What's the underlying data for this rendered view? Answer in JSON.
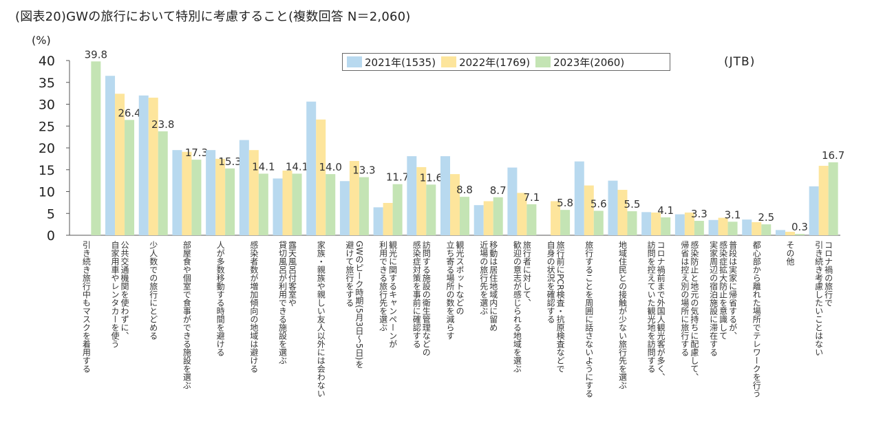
{
  "chart_data": {
    "type": "bar",
    "title": "(図表20)GWの旅行において特別に考慮すること(複数回答 N＝2,060)",
    "ylabel": "(%)",
    "source": "(JTB)",
    "ylim": [
      0,
      40
    ],
    "yticks": [
      0,
      5,
      10,
      15,
      20,
      25,
      30,
      35,
      40
    ],
    "grid": false,
    "legend_position": "top-center",
    "categories": [
      "引き続き旅行中もマスクを着用する",
      "公共交通機関を使わずに、自家用車やレンタカーを使う",
      "少人数での旅行にとどめる",
      "部屋食や個室で食事ができる施設を選ぶ",
      "人が多数移動する時間を避ける",
      "感染者数が増加傾向の地域は避ける",
      "露天風呂付客室や貸切風呂が利用できる施設を選ぶ",
      "家族・親族や親しい友人以外には会わない",
      "GWのピーク時期(5月3日～5日)を避けて旅行をする",
      "観光に関するキャンペーンが利用できる旅行先を選ぶ",
      "訪問する施設の衛生管理などの感染症対策を事前に確認する",
      "観光スポットなどの立ち寄る場所の数を減らす",
      "移動は居住地域内に留め近場の旅行先を選ぶ",
      "旅行者に対して、歓迎の意志が感じられる地域を選ぶ",
      "旅行前にPCR検査・抗原検査などで自身の状況を確認する",
      "旅行することを周囲に話さないようにする",
      "地域住民との接触が少ない旅行先を選ぶ",
      "コロナ禍前まで外国人観光客が多く、訪問を控えていた観光地を訪問する",
      "感染防止と地元の気持ちに配慮して、帰省は控え別の場所に旅行する",
      "普段は実家に帰省するが、感染症拡大防止を意識して実家周辺の宿泊施設に滞在する",
      "都心部から離れた場所でテレワークを行う",
      "その他",
      "コロナ禍の旅行で引き続き考慮したいことはない"
    ],
    "category_lines": [
      [
        "引き続き旅行中もマスクを着用する"
      ],
      [
        "公共交通機関を使わずに、",
        "自家用車やレンタカーを使う"
      ],
      [
        "少人数での旅行にとどめる"
      ],
      [
        "部屋食や個室で食事ができる施設を選ぶ"
      ],
      [
        "人が多数移動する時間を避ける"
      ],
      [
        "感染者数が増加傾向の地域は避ける"
      ],
      [
        "露天風呂付客室や",
        "貸切風呂が利用できる施設を選ぶ"
      ],
      [
        "家族・親族や親しい友人以外には会わない"
      ],
      [
        "GWのピーク時期(5月3日～5日)を",
        "避けて旅行をする"
      ],
      [
        "観光に関するキャンペーンが",
        "利用できる旅行先を選ぶ"
      ],
      [
        "訪問する施設の衛生管理などの",
        "感染症対策を事前に確認する"
      ],
      [
        "観光スポットなどの",
        "立ち寄る場所の数を減らす"
      ],
      [
        "移動は居住地域内に留め",
        "近場の旅行先を選ぶ"
      ],
      [
        "旅行者に対して、",
        "歓迎の意志が感じられる地域を選ぶ"
      ],
      [
        "旅行前にPCR検査・抗原検査などで",
        "自身の状況を確認する"
      ],
      [
        "旅行することを周囲に話さないようにする"
      ],
      [
        "地域住民との接触が少ない旅行先を選ぶ"
      ],
      [
        "コロナ禍前まで外国人観光客が多く、",
        "訪問を控えていた観光地を訪問する"
      ],
      [
        "感染防止と地元の気持ちに配慮して、",
        "帰省は控え別の場所に旅行する"
      ],
      [
        "普段は実家に帰省するが、",
        "感染症拡大防止を意識して",
        "実家周辺の宿泊施設に滞在する"
      ],
      [
        "都心部から離れた場所でテレワークを行う"
      ],
      [
        "その他"
      ],
      [
        "コロナ禍の旅行で",
        "引き続き考慮したいことはない"
      ]
    ],
    "series": [
      {
        "name": "2021年(1535)",
        "color": "#b8d9ef",
        "values": [
          null,
          36.5,
          32.0,
          19.5,
          19.5,
          21.8,
          13.0,
          30.6,
          12.4,
          6.4,
          18.1,
          18.1,
          6.9,
          15.5,
          null,
          16.9,
          12.5,
          5.3,
          4.8,
          3.5,
          3.6,
          1.2,
          11.2
        ]
      },
      {
        "name": "2022年(1769)",
        "color": "#fde59c",
        "values": [
          null,
          32.4,
          31.5,
          19.1,
          17.5,
          19.5,
          14.8,
          26.5,
          17.0,
          7.4,
          15.6,
          14.0,
          7.8,
          9.7,
          7.8,
          11.4,
          10.4,
          5.2,
          5.2,
          4.0,
          3.0,
          0.8,
          15.9
        ]
      },
      {
        "name": "2023年(2060)",
        "color": "#c4e4b4",
        "values": [
          39.8,
          26.4,
          23.8,
          17.3,
          15.3,
          14.1,
          14.1,
          14.0,
          13.3,
          11.7,
          11.6,
          8.8,
          8.7,
          7.1,
          5.8,
          5.6,
          5.5,
          4.1,
          3.3,
          3.1,
          2.5,
          0.3,
          16.7
        ]
      }
    ],
    "labels_2023": [
      "39.8",
      "26.4",
      "23.8",
      "17.3",
      "15.3",
      "14.1",
      "14.1",
      "14.0",
      "13.3",
      "11.7",
      "11.6",
      "8.8",
      "8.7",
      "7.1",
      "5.8",
      "5.6",
      "5.5",
      "4.1",
      "3.3",
      "3.1",
      "2.5",
      "0.3",
      "16.7"
    ]
  }
}
